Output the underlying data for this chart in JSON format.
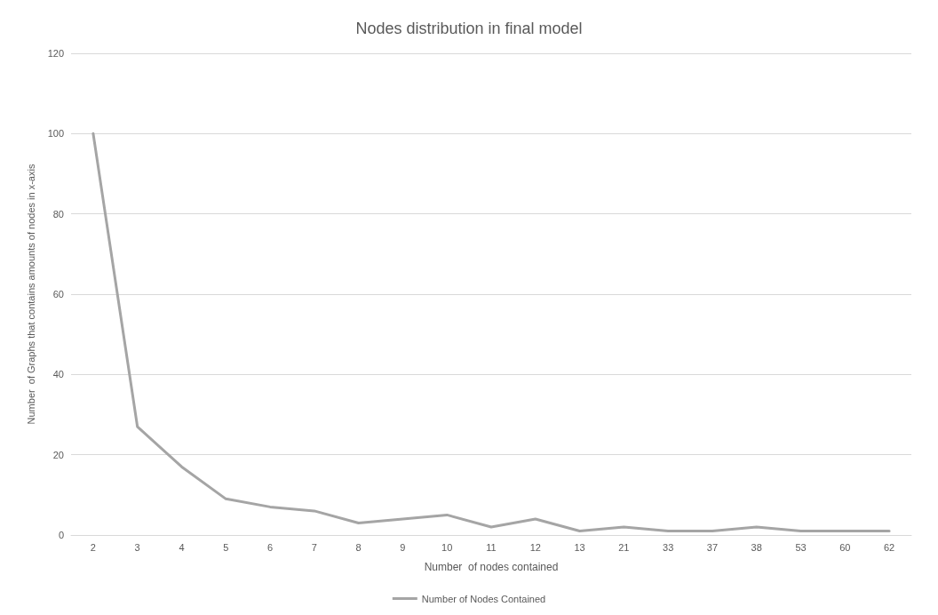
{
  "chart_data": {
    "type": "line",
    "title": "Nodes distribution in final model",
    "xlabel": "Number  of nodes contained",
    "ylabel": "Number  of Graphs that contains amounts of nodes in x-axis",
    "categories": [
      "2",
      "3",
      "4",
      "5",
      "6",
      "7",
      "8",
      "9",
      "10",
      "11",
      "12",
      "13",
      "21",
      "33",
      "37",
      "38",
      "53",
      "60",
      "62"
    ],
    "series": [
      {
        "name": "Number of Nodes Contained",
        "color": "#a5a5a5",
        "values": [
          100,
          27,
          17,
          9,
          7,
          6,
          3,
          4,
          5,
          2,
          4,
          1,
          2,
          1,
          1,
          2,
          1,
          1,
          1
        ]
      }
    ],
    "ylim": [
      0,
      120
    ],
    "yticks": [
      0,
      20,
      40,
      60,
      80,
      100,
      120
    ],
    "grid": "y",
    "legend": "bottom",
    "marker": "none",
    "line_style": "solid"
  }
}
